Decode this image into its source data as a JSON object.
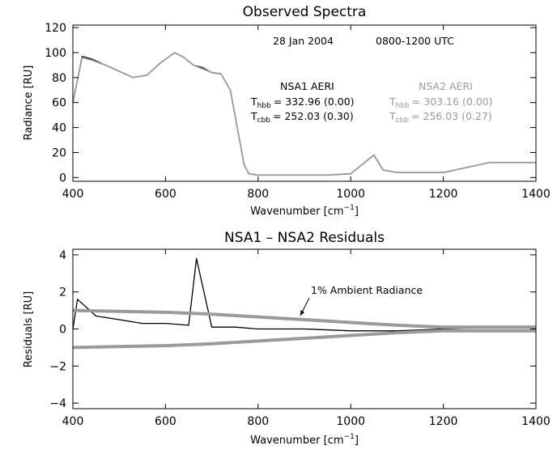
{
  "chart_data": [
    {
      "type": "line",
      "title": "Observed Spectra",
      "xlabel": "Wavenumber [cm",
      "xlabel_sup": "−1",
      "xlabel_end": "]",
      "ylabel": "Radiance [RU]",
      "xlim": [
        400,
        1400
      ],
      "ylim": [
        -3,
        122
      ],
      "xticks": [
        400,
        600,
        800,
        1000,
        1200,
        1400
      ],
      "xtick_labels": [
        "400",
        "600",
        "800",
        "1000",
        "1200",
        "1400"
      ],
      "yticks": [
        0,
        20,
        40,
        60,
        80,
        100,
        120
      ],
      "ytick_labels": [
        "0",
        "20",
        "40",
        "60",
        "80",
        "100",
        "120"
      ],
      "grid": false,
      "date_text": "28 Jan 2004",
      "time_text": "0800-1200 UTC",
      "series": [
        {
          "name": "NSA1 AERI",
          "color": "#000000",
          "x": [
            400,
            420,
            440,
            470,
            500,
            530,
            560,
            590,
            620,
            640,
            660,
            680,
            700,
            720,
            740,
            760,
            770,
            780,
            800,
            850,
            900,
            950,
            1000,
            1030,
            1050,
            1070,
            1100,
            1150,
            1200,
            1250,
            1300,
            1350,
            1400
          ],
          "y": [
            60,
            97,
            95,
            90,
            85,
            80,
            82,
            92,
            100,
            96,
            90,
            88,
            84,
            83,
            70,
            30,
            10,
            3,
            2,
            2,
            2,
            2,
            3,
            12,
            18,
            6,
            4,
            4,
            4,
            8,
            12,
            12,
            12
          ]
        },
        {
          "name": "NSA2 AERI",
          "color": "#9a9a9a",
          "x": [
            400,
            420,
            440,
            470,
            500,
            530,
            560,
            590,
            620,
            640,
            660,
            680,
            700,
            720,
            740,
            760,
            770,
            780,
            800,
            850,
            900,
            950,
            1000,
            1030,
            1050,
            1070,
            1100,
            1150,
            1200,
            1250,
            1300,
            1350,
            1400
          ],
          "y": [
            60,
            96,
            94,
            90,
            85,
            80,
            82,
            92,
            100,
            96,
            90,
            87,
            84,
            83,
            70,
            30,
            10,
            3,
            2,
            2,
            2,
            2,
            3,
            12,
            18,
            6,
            4,
            4,
            4,
            8,
            12,
            12,
            12
          ]
        }
      ],
      "stats": [
        {
          "name": "NSA1 AERI",
          "color": "#000000",
          "lines": [
            {
              "sub": "hbb",
              "value": "= 332.96 (0.00)"
            },
            {
              "sub": "cbb",
              "value": "= 252.03 (0.30)"
            }
          ]
        },
        {
          "name": "NSA2 AERI",
          "color": "#9a9a9a",
          "lines": [
            {
              "sub": "hbb",
              "value": "= 303.16 (0.00)"
            },
            {
              "sub": "cbb",
              "value": "= 256.03 (0.27)"
            }
          ]
        }
      ],
      "stat_symbol": "T"
    },
    {
      "type": "line",
      "title": "NSA1 – NSA2 Residuals",
      "xlabel": "Wavenumber [cm",
      "xlabel_sup": "−1",
      "xlabel_end": "]",
      "ylabel": "Residuals [RU]",
      "xlim": [
        400,
        1400
      ],
      "ylim": [
        -4.3,
        4.3
      ],
      "xticks": [
        400,
        600,
        800,
        1000,
        1200,
        1400
      ],
      "xtick_labels": [
        "400",
        "600",
        "800",
        "1000",
        "1200",
        "1400"
      ],
      "yticks": [
        -4,
        -2,
        0,
        2,
        4
      ],
      "ytick_labels": [
        "−4",
        "−2",
        "0",
        "2",
        "4"
      ],
      "grid": false,
      "annotation": "1% Ambient Radiance",
      "series": [
        {
          "name": "",
          "color": "#000000",
          "x": [
            400,
            410,
            450,
            500,
            550,
            600,
            650,
            667,
            700,
            750,
            800,
            900,
            1000,
            1100,
            1200,
            1300,
            1400
          ],
          "y": [
            0,
            1.6,
            0.7,
            0.5,
            0.3,
            0.3,
            0.2,
            3.8,
            0.1,
            0.1,
            0,
            0,
            -0.1,
            -0.1,
            0,
            0.1,
            0.1
          ]
        },
        {
          "name": "1% Ambient Radiance",
          "color": "#9a9a9a",
          "x": [
            400,
            600,
            700,
            800,
            900,
            1000,
            1100,
            1200,
            1400
          ],
          "y": [
            1.0,
            0.9,
            0.8,
            0.65,
            0.5,
            0.35,
            0.2,
            0.1,
            0.1
          ]
        },
        {
          "name": "",
          "color": "#9a9a9a",
          "x": [
            400,
            600,
            700,
            800,
            900,
            1000,
            1100,
            1200,
            1400
          ],
          "y": [
            -1.0,
            -0.9,
            -0.8,
            -0.65,
            -0.5,
            -0.35,
            -0.2,
            -0.1,
            -0.1
          ]
        }
      ]
    }
  ]
}
